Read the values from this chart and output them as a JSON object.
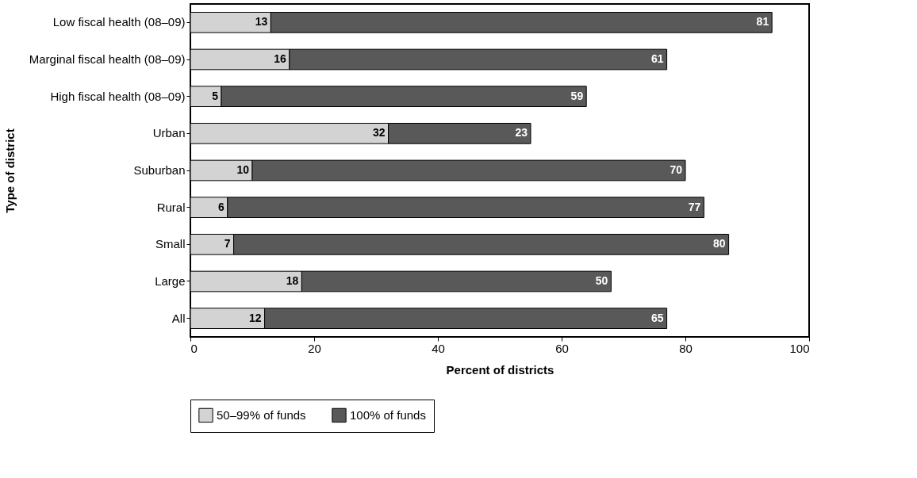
{
  "chart_data": {
    "type": "bar",
    "orientation": "horizontal",
    "stacked": true,
    "data_labels": true,
    "xlabel": "Percent of districts",
    "ylabel": "Type of district",
    "categories": [
      "Low fiscal health (08–09)",
      "Marginal fiscal health (08–09)",
      "High fiscal health (08–09)",
      "Urban",
      "Suburban",
      "Rural",
      "Small",
      "Large",
      "All"
    ],
    "series": [
      {
        "name": "50–99% of funds",
        "color": "#d3d3d3",
        "values": [
          13,
          16,
          5,
          32,
          10,
          6,
          7,
          18,
          12
        ]
      },
      {
        "name": "100% of funds",
        "color": "#595959",
        "values": [
          81,
          61,
          59,
          23,
          70,
          77,
          80,
          50,
          65
        ]
      }
    ],
    "xlim": [
      0,
      100
    ],
    "xticks": [
      0,
      20,
      40,
      60,
      80,
      100
    ],
    "grid": false,
    "legend": "bottom"
  }
}
